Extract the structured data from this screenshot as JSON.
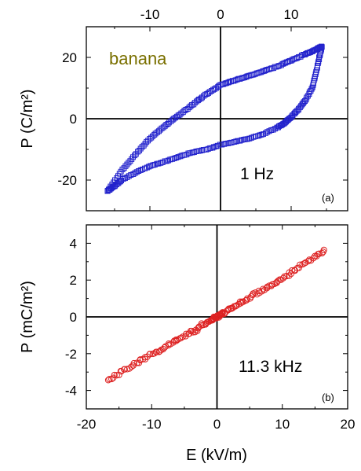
{
  "chart_data": [
    {
      "type": "scatter",
      "panel_label": "(a)",
      "annotation": "1 Hz",
      "sample_label": "banana",
      "sample_color": "#7a7000",
      "series_color": "#2222cc",
      "marker": "square",
      "ylabel": "P (C/m²)",
      "xlim": [
        -19,
        18
      ],
      "ylim": [
        -30,
        30
      ],
      "xticks": [
        -10,
        0,
        10
      ],
      "xtick_labels": [
        "-10",
        "0",
        "10"
      ],
      "yticks": [
        -20,
        0,
        20
      ],
      "ytick_labels": [
        "-20",
        "0",
        "20"
      ],
      "x_axis_position": "top",
      "upper_branch": {
        "x": [
          -16.0,
          -14,
          -12,
          -10,
          -8,
          -6,
          -4,
          -2,
          0,
          2,
          4,
          6,
          8,
          10,
          12,
          13.5,
          14.3
        ],
        "y": [
          -23.5,
          -17.0,
          -11.5,
          -6.5,
          -2.5,
          1.0,
          4.5,
          8.0,
          11.0,
          12.5,
          14.0,
          15.5,
          17.0,
          19.0,
          21.0,
          22.5,
          23.5
        ]
      },
      "lower_branch": {
        "x": [
          14.3,
          14.0,
          13.5,
          13.0,
          12.0,
          11.0,
          10.0,
          9.0,
          8.0,
          6.0,
          4.0,
          2.0,
          0.0,
          -2.0,
          -4.0,
          -6.0,
          -8.0,
          -10.0,
          -12.0,
          -14.0,
          -15.0,
          -16.0
        ],
        "y": [
          23.5,
          20.0,
          15.0,
          10.0,
          6.0,
          3.0,
          0.5,
          -1.5,
          -3.0,
          -5.0,
          -6.5,
          -7.5,
          -8.5,
          -10.0,
          -11.0,
          -12.5,
          -14.0,
          -15.5,
          -17.5,
          -20.0,
          -22.0,
          -23.5
        ]
      }
    },
    {
      "type": "scatter",
      "panel_label": "(b)",
      "annotation": "11.3 kHz",
      "series_color": "#dd2222",
      "marker": "circle",
      "xlabel": "E (kV/m)",
      "ylabel": "P (mC/m²)",
      "xlim": [
        -20,
        20
      ],
      "ylim": [
        -5,
        5
      ],
      "xticks": [
        -20,
        -10,
        0,
        10,
        20
      ],
      "xtick_labels": [
        "-20",
        "-10",
        "0",
        "10",
        "20"
      ],
      "yticks": [
        -4,
        -2,
        0,
        2,
        4
      ],
      "ytick_labels": [
        "-4",
        "-2",
        "0",
        "2",
        "4"
      ],
      "x_axis_position": "bottom",
      "trend": {
        "x": [
          -16.8,
          -12,
          -8,
          -4,
          -1,
          0,
          1,
          4,
          8,
          12,
          16.5
        ],
        "y": [
          -3.45,
          -2.45,
          -1.65,
          -0.85,
          -0.2,
          0.0,
          0.2,
          0.85,
          1.65,
          2.55,
          3.65
        ]
      },
      "scatter_sd": 0.07
    }
  ]
}
